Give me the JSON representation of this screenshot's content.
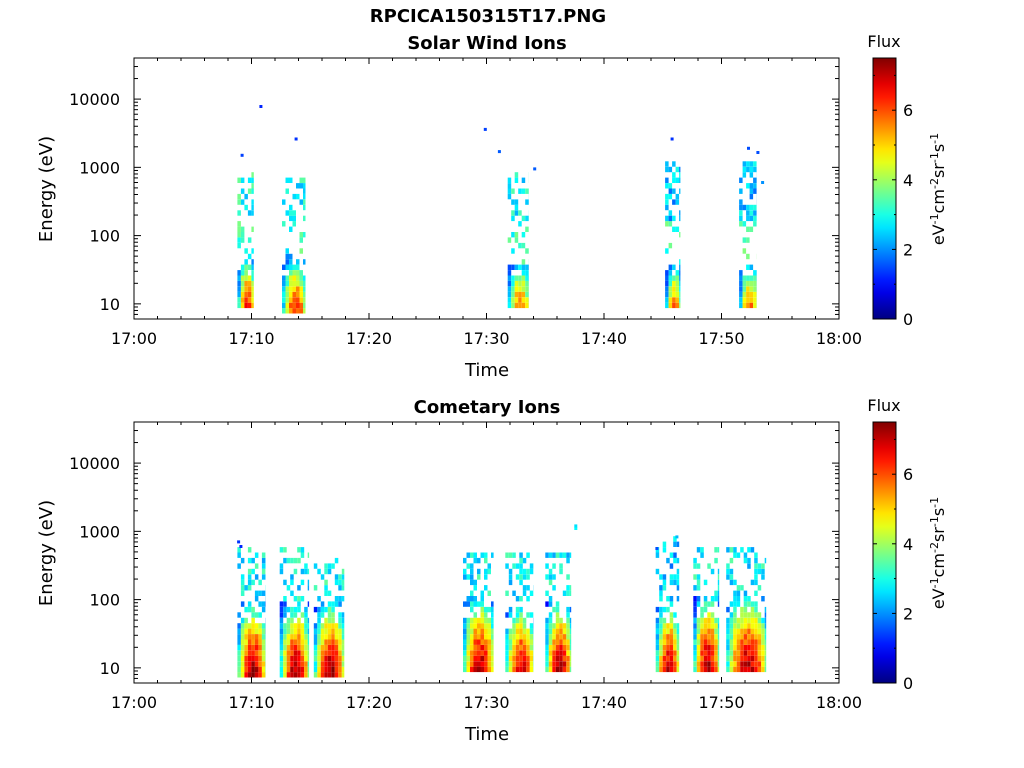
{
  "figure": {
    "title": "RPCICA150315T17.PNG"
  },
  "colors": {
    "axis": "#000000",
    "background": "#ffffff"
  },
  "colormap": "jet",
  "chart_data": [
    {
      "type": "heatmap",
      "title": "Solar Wind Ions",
      "xlabel": "Time",
      "ylabel": "Energy (eV)",
      "x_ticks": [
        "17:00",
        "17:10",
        "17:20",
        "17:30",
        "17:40",
        "17:50",
        "18:00"
      ],
      "x_range_minutes": [
        0,
        60
      ],
      "y_scale": "log",
      "y_ticks": [
        "10",
        "100",
        "1000",
        "10000"
      ],
      "y_range_eV": [
        6,
        40000
      ],
      "colorbar": {
        "title": "Flux",
        "label": "eV-1cm-2sr-1s-1",
        "range": [
          0,
          7.5
        ],
        "ticks": [
          "0",
          "2",
          "4",
          "6"
        ]
      },
      "bursts": [
        {
          "t_start_min": 8.8,
          "t_end_min": 10.2,
          "low_E": [
            8,
            45
          ],
          "low_peak": 6.6,
          "high_E": [
            180,
            900
          ],
          "high_peak": 3.0
        },
        {
          "t_start_min": 12.6,
          "t_end_min": 14.6,
          "low_E": [
            7,
            50
          ],
          "low_peak": 6.4,
          "high_E": [
            200,
            900
          ],
          "high_peak": 2.8
        },
        {
          "t_start_min": 31.8,
          "t_end_min": 33.6,
          "low_E": [
            8,
            40
          ],
          "low_peak": 5.8,
          "high_E": [
            150,
            800
          ],
          "high_peak": 2.8
        },
        {
          "t_start_min": 45.2,
          "t_end_min": 46.5,
          "low_E": [
            8,
            40
          ],
          "low_peak": 5.8,
          "high_E": [
            150,
            1300
          ],
          "high_peak": 2.4
        },
        {
          "t_start_min": 51.5,
          "t_end_min": 53.0,
          "low_E": [
            8,
            40
          ],
          "low_peak": 5.8,
          "high_E": [
            150,
            1300
          ],
          "high_peak": 2.4
        }
      ],
      "sparse_points": [
        {
          "t_min": 10.8,
          "E": 7800,
          "v": 1.2
        },
        {
          "t_min": 13.8,
          "E": 2600,
          "v": 1.3
        },
        {
          "t_min": 9.2,
          "E": 1500,
          "v": 1.4
        },
        {
          "t_min": 29.9,
          "E": 3600,
          "v": 1.4
        },
        {
          "t_min": 31.1,
          "E": 1700,
          "v": 1.6
        },
        {
          "t_min": 34.1,
          "E": 950,
          "v": 1.6
        },
        {
          "t_min": 45.8,
          "E": 2600,
          "v": 1.3
        },
        {
          "t_min": 52.3,
          "E": 1900,
          "v": 1.5
        },
        {
          "t_min": 53.1,
          "E": 1650,
          "v": 1.5
        },
        {
          "t_min": 53.5,
          "E": 600,
          "v": 2.0
        }
      ]
    },
    {
      "type": "heatmap",
      "title": "Cometary Ions",
      "xlabel": "Time",
      "ylabel": "Energy (eV)",
      "x_ticks": [
        "17:00",
        "17:10",
        "17:20",
        "17:30",
        "17:40",
        "17:50",
        "18:00"
      ],
      "x_range_minutes": [
        0,
        60
      ],
      "y_scale": "log",
      "y_ticks": [
        "10",
        "100",
        "1000",
        "10000"
      ],
      "y_range_eV": [
        6,
        40000
      ],
      "colorbar": {
        "title": "Flux",
        "label": "eV-1cm-2sr-1s-1",
        "range": [
          0,
          7.5
        ],
        "ticks": [
          "0",
          "2",
          "4",
          "6"
        ]
      },
      "bursts": [
        {
          "t_start_min": 8.8,
          "t_end_min": 11.2,
          "low_E": [
            7,
            90
          ],
          "low_peak": 7.3,
          "high_E": [
            100,
            550
          ],
          "high_peak": 2.8
        },
        {
          "t_start_min": 12.4,
          "t_end_min": 14.9,
          "low_E": [
            7,
            90
          ],
          "low_peak": 7.2,
          "high_E": [
            100,
            550
          ],
          "high_peak": 2.8
        },
        {
          "t_start_min": 15.3,
          "t_end_min": 17.9,
          "low_E": [
            7,
            90
          ],
          "low_peak": 7.3,
          "high_E": [
            100,
            400
          ],
          "high_peak": 2.9
        },
        {
          "t_start_min": 28.0,
          "t_end_min": 30.6,
          "low_E": [
            8,
            110
          ],
          "low_peak": 7.2,
          "high_E": [
            100,
            500
          ],
          "high_peak": 2.8
        },
        {
          "t_start_min": 31.6,
          "t_end_min": 34.0,
          "low_E": [
            8,
            80
          ],
          "low_peak": 7.0,
          "high_E": [
            100,
            500
          ],
          "high_peak": 2.8
        },
        {
          "t_start_min": 35.0,
          "t_end_min": 37.2,
          "low_E": [
            8,
            100
          ],
          "low_peak": 7.2,
          "high_E": [
            100,
            500
          ],
          "high_peak": 2.8
        },
        {
          "t_start_min": 44.4,
          "t_end_min": 46.4,
          "low_E": [
            8,
            90
          ],
          "low_peak": 7.0,
          "high_E": [
            100,
            850
          ],
          "high_peak": 2.4
        },
        {
          "t_start_min": 47.6,
          "t_end_min": 49.8,
          "low_E": [
            8,
            120
          ],
          "low_peak": 7.2,
          "high_E": [
            120,
            550
          ],
          "high_peak": 2.8
        },
        {
          "t_start_min": 50.4,
          "t_end_min": 53.8,
          "low_E": [
            8,
            120
          ],
          "low_peak": 7.2,
          "high_E": [
            100,
            550
          ],
          "high_peak": 2.8
        }
      ],
      "sparse_points": [
        {
          "t_min": 37.6,
          "E": 1100,
          "v": 2.8
        },
        {
          "t_min": 37.6,
          "E": 1200,
          "v": 2.6
        },
        {
          "t_min": 8.9,
          "E": 700,
          "v": 1.3
        },
        {
          "t_min": 9.1,
          "E": 600,
          "v": 1.2
        },
        {
          "t_min": 44.5,
          "E": 560,
          "v": 1.5
        },
        {
          "t_min": 46.2,
          "E": 830,
          "v": 2.3
        }
      ]
    }
  ]
}
